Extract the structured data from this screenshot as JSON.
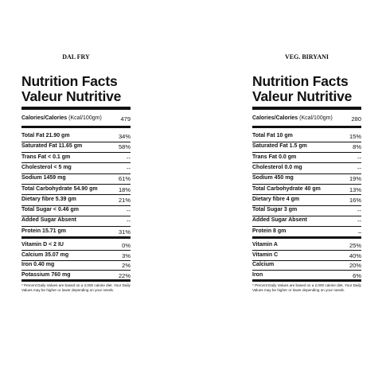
{
  "panels": [
    {
      "name": "DAL FRY",
      "title_line1": "Nutrition Facts",
      "title_line2": "Valeur Nutritive",
      "calories_label": "Calories/Calories",
      "calories_unit": "(Kcal/100gm)",
      "calories_value": "479",
      "sections": [
        [
          [
            "Total Fat 21.90 gm",
            "34%"
          ],
          [
            "Saturated Fat 11.65 gm",
            "58%"
          ],
          [
            "Trans Fat < 0.1 gm",
            "--"
          ],
          [
            "Cholesterol < 5 mg",
            "--"
          ],
          [
            "Sodium 1459 mg",
            "61%"
          ],
          [
            "Total Carbohydrate 54.90 gm",
            "18%"
          ],
          [
            "Dietary fibre 5.39 gm",
            "21%"
          ],
          [
            "Total Sugar < 0.46 gm",
            "--"
          ],
          [
            "Added Sugar Absent",
            "--"
          ],
          [
            "Protein 15.71 gm",
            "31%"
          ]
        ],
        [
          [
            "Vitamin D < 2 IU",
            "0%"
          ],
          [
            "Calcium 35.07 mg",
            "3%"
          ],
          [
            "Iron 0.40 mg",
            "2%"
          ],
          [
            "Potassium 760 mg",
            "22%"
          ]
        ]
      ],
      "footnote": "* Percent Daily Values are based on a 2,000 calorie diet. Your Daily Values may be higher or lower depending on your needs."
    },
    {
      "name": "VEG. BIRYANI",
      "title_line1": "Nutrition Facts",
      "title_line2": "Valeur Nutritive",
      "calories_label": "Calories/Calories",
      "calories_unit": "(Kcal/100gm)",
      "calories_value": "280",
      "sections": [
        [
          [
            "Total Fat 10 gm",
            "15%"
          ],
          [
            "Saturated Fat 1.5 gm",
            "8%"
          ],
          [
            "Trans Fat 0.0 gm",
            "--"
          ],
          [
            "Cholesterol 0.0 mg",
            "--"
          ],
          [
            "Sodium 450 mg",
            "19%"
          ],
          [
            "Total Carbohydrate 40 gm",
            "13%"
          ],
          [
            "Dietary fibre 4 gm",
            "16%"
          ],
          [
            "Total Sugar 3 gm",
            "--"
          ],
          [
            "Added Sugar Absent",
            "--"
          ],
          [
            "Protein 8 gm",
            "–"
          ]
        ],
        [
          [
            "Vitamin A",
            "25%"
          ],
          [
            "Vitamin C",
            "40%"
          ],
          [
            "Calcium",
            "20%"
          ],
          [
            "Iron",
            "6%"
          ]
        ]
      ],
      "footnote": "* Percent Daily Values are based on a 2,000 calorie diet. Your Daily Values may be higher or lower depending on your needs."
    }
  ]
}
